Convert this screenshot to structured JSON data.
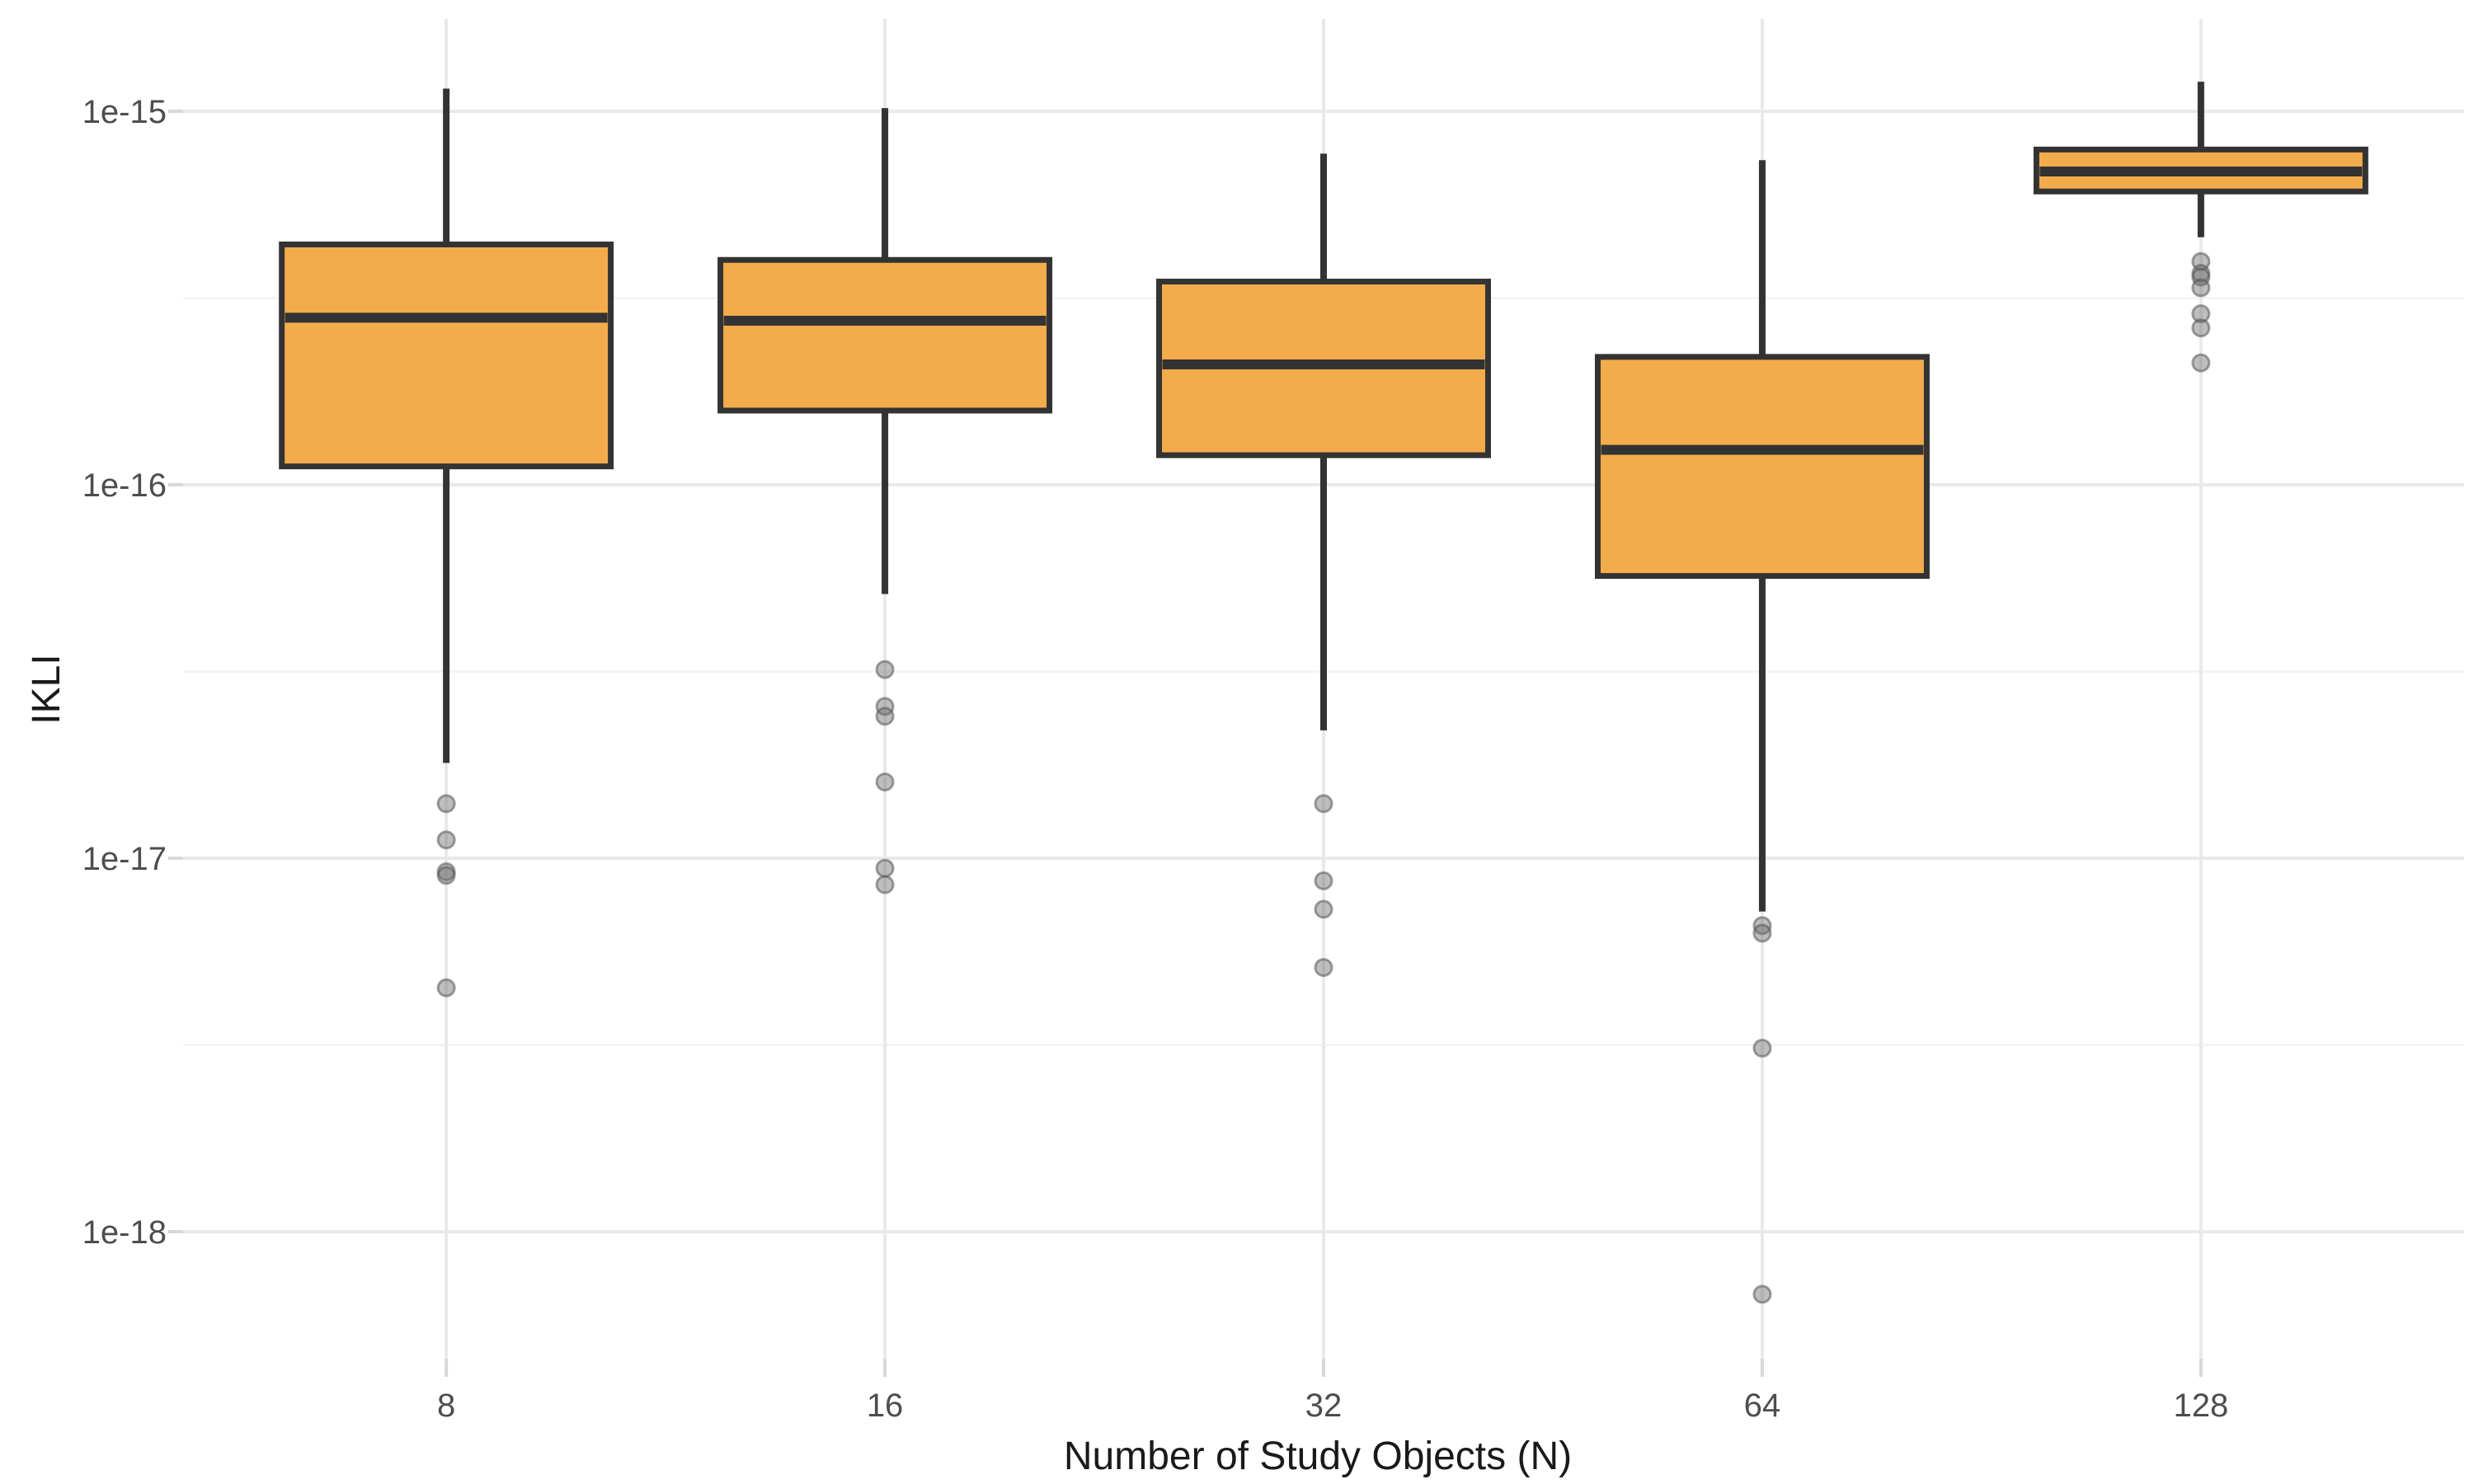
{
  "figure": {
    "background": "#FFFFFF"
  },
  "chart_data": {
    "type": "boxplot",
    "orientation": "vertical",
    "title": "",
    "xlabel": "Number of Study Objects (N)",
    "ylabel": "IKLI",
    "y_scale": "log10",
    "grid": "major+minor",
    "legend": "none",
    "ylim_log10": [
      -18.35,
      -14.75
    ],
    "y_ticks": [
      {
        "label": "1e-15",
        "value": 1e-15
      },
      {
        "label": "1e-16",
        "value": 1e-16
      },
      {
        "label": "1e-17",
        "value": 1e-17
      },
      {
        "label": "1e-18",
        "value": 1e-18
      }
    ],
    "categories": [
      "8",
      "16",
      "32",
      "64",
      "128"
    ],
    "series": [
      {
        "category": "8",
        "whisker_low": 1.8e-17,
        "q1": 1.12e-16,
        "median": 2.8e-16,
        "q3": 4.4e-16,
        "whisker_high": 1.15e-15,
        "outliers": [
          1.4e-17,
          1.12e-17,
          9.2e-18,
          9e-18,
          4.5e-18
        ]
      },
      {
        "category": "16",
        "whisker_low": 5.1e-17,
        "q1": 1.58e-16,
        "median": 2.75e-16,
        "q3": 4e-16,
        "whisker_high": 1.02e-15,
        "outliers": [
          3.2e-17,
          2.55e-17,
          2.4e-17,
          1.6e-17,
          9.4e-18,
          8.5e-18
        ]
      },
      {
        "category": "32",
        "whisker_low": 2.2e-17,
        "q1": 1.2e-16,
        "median": 2.1e-16,
        "q3": 3.5e-16,
        "whisker_high": 7.7e-16,
        "outliers": [
          1.4e-17,
          8.7e-18,
          7.3e-18,
          5.1e-18
        ]
      },
      {
        "category": "64",
        "whisker_low": 7.2e-18,
        "q1": 5.7e-17,
        "median": 1.24e-16,
        "q3": 2.2e-16,
        "whisker_high": 7.4e-16,
        "outliers": [
          6.6e-18,
          6.3e-18,
          3.1e-18,
          6.8e-19
        ]
      },
      {
        "category": "128",
        "whisker_low": 4.6e-16,
        "q1": 6.1e-16,
        "median": 6.9e-16,
        "q3": 7.9e-16,
        "whisker_high": 1.2e-15,
        "outliers": [
          3.96e-16,
          3.68e-16,
          3.6e-16,
          3.37e-16,
          2.87e-16,
          2.63e-16,
          2.12e-16
        ]
      }
    ],
    "colors": {
      "box_fill": "#F3AC4C",
      "box_stroke": "#333333",
      "median_stroke": "#333333",
      "whisker_stroke": "#333333",
      "outlier_fill": "#6E6E6E",
      "outlier_stroke": "#565656",
      "grid_major": "#E9E9E9",
      "grid_minor": "#F4F4F4",
      "tick_mark": "#D8D8D8",
      "tick_label": "#4D4D4D",
      "axis_title": "#1A1A1A",
      "background": "#FFFFFF"
    }
  }
}
